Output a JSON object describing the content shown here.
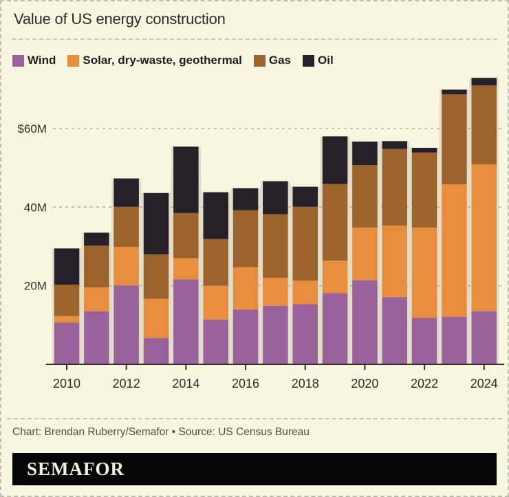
{
  "page": {
    "title": "Value of US energy construction",
    "attribution": "Chart: Brendan Ruberry/Semafor • Source: US Census Bureau",
    "logo": "SEMAFOR"
  },
  "colors": {
    "background": "#f9f6e0",
    "wind": "#99629b",
    "solar": "#e88c3d",
    "gas": "#9c632c",
    "oil": "#272029",
    "silhouette": "#e2ddc8",
    "grid": "#aeaea0",
    "axis": "#2d2d2d",
    "tick_label": "#2d2d2d"
  },
  "legend": [
    {
      "label": "Wind",
      "color_key": "wind"
    },
    {
      "label": "Solar, dry-waste, geothermal",
      "color_key": "solar"
    },
    {
      "label": "Gas",
      "color_key": "gas"
    },
    {
      "label": "Oil",
      "color_key": "oil"
    }
  ],
  "chart_data": {
    "type": "bar",
    "stacked": true,
    "unit": "millions of US dollars",
    "title": "Value of US energy construction",
    "xlabel": "",
    "ylabel": "",
    "ylim": [
      0,
      76
    ],
    "grid": "dashed horizontal",
    "legend_position": "top",
    "categories": [
      2010,
      2011,
      2012,
      2013,
      2014,
      2015,
      2016,
      2017,
      2018,
      2019,
      2020,
      2021,
      2022,
      2023,
      2024
    ],
    "series": [
      {
        "name": "Wind",
        "color_key": "wind",
        "values": [
          10.6,
          13.5,
          20.1,
          6.7,
          21.6,
          11.4,
          13.9,
          14.9,
          15.3,
          18.1,
          21.4,
          17.1,
          11.8,
          12.1,
          13.5
        ]
      },
      {
        "name": "Solar, dry-waste, geothermal",
        "color_key": "solar",
        "values": [
          1.7,
          6.1,
          9.8,
          10.0,
          5.4,
          8.6,
          10.8,
          7.1,
          6.0,
          8.3,
          13.4,
          18.2,
          23.0,
          33.7,
          37.4
        ]
      },
      {
        "name": "Gas",
        "color_key": "gas",
        "values": [
          8.0,
          10.6,
          10.2,
          11.3,
          11.5,
          11.9,
          14.5,
          16.2,
          18.8,
          19.5,
          15.9,
          19.5,
          19.1,
          22.9,
          20.1
        ]
      },
      {
        "name": "Oil",
        "color_key": "oil",
        "values": [
          9.2,
          3.3,
          7.2,
          15.6,
          16.9,
          11.9,
          5.6,
          8.4,
          5.1,
          12.1,
          6.0,
          2.0,
          1.2,
          1.2,
          1.9
        ]
      }
    ],
    "totals": [
      29.5,
      33.5,
      47.3,
      43.6,
      55.4,
      43.8,
      44.8,
      46.6,
      45.2,
      58.0,
      56.7,
      56.8,
      55.1,
      69.9,
      72.9
    ],
    "y_ticks": [
      {
        "value": 20,
        "label": "20M"
      },
      {
        "value": 40,
        "label": "40M"
      },
      {
        "value": 60,
        "label": "$60M"
      }
    ],
    "x_tick_labels": [
      "2010",
      "2012",
      "2014",
      "2016",
      "2018",
      "2020",
      "2022",
      "2024"
    ]
  }
}
